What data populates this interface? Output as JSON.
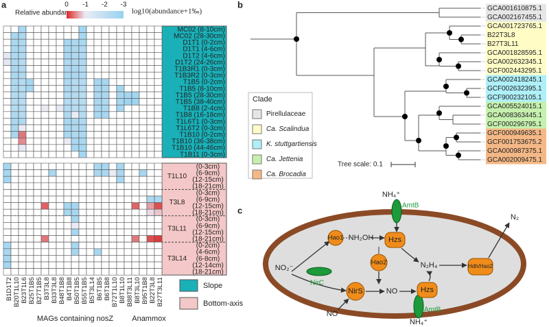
{
  "panel_labels": [
    "a",
    "b",
    "c"
  ],
  "heatmap": {
    "legend_title": "Relative abundance",
    "scale_ticks": [
      0,
      -1,
      -2,
      -3
    ],
    "scale_label": "log10(abundance+1‰)",
    "groups": [
      {
        "label": "MAGs containing nosZ",
        "color": "#1a1ad8",
        "columns": [
          "B1D1T2",
          "B20T1L10",
          "B23T1L6",
          "B25T1B5",
          "B27T1B5",
          "B3T3L8",
          "B33T3L8",
          "B48T1B8",
          "B4T1B8",
          "B50T1B5",
          "B55T1B5",
          "B5T3L14",
          "B6T1B5",
          "B6T1B8",
          "B72T1L10",
          "B8T1L10",
          "B88T3L11",
          "B8T3L10",
          "B95T1B8"
        ]
      },
      {
        "label": "Anammox",
        "color": "#e8201e",
        "columns": [
          "B22T3L8",
          "B27T3L11"
        ]
      }
    ],
    "top": {
      "label": "Slope",
      "color": "#1ab0b8",
      "rows": [
        "MC02 (8-10cm)",
        "MC02 (28-30cm)",
        "D1T1 (0-2cm)",
        "D1T1 (4-6cm)",
        "D1T2 (4-6cm)",
        "D1T2 (24-26cm)",
        "T1B3R1 (0-3cm)",
        "T1B3R2 (0-3cm)",
        "T1B5 (0-2cm)",
        "T1B5 (8-10cm)",
        "T1B5 (28-30cm)",
        "T1B5 (38-40cm)",
        "T1B8 (2-4cm)",
        "T1B8 (16-18cm)",
        "T1L6T1 (0-3cm)",
        "T1L6T2 (0-3cm)",
        "T1B10 (0-2cm)",
        "T1B10 (36-38cm)",
        "T1B10 (44-46cm)",
        "T1B11 (0-3cm)"
      ],
      "values": [
        [
          null,
          null,
          -2.6,
          null,
          null,
          null,
          null,
          null,
          null,
          null,
          -2.7,
          null,
          null,
          null,
          null,
          null,
          null,
          null,
          null,
          null,
          null
        ],
        [
          null,
          -2.6,
          -2.5,
          null,
          null,
          null,
          null,
          null,
          null,
          null,
          -2.6,
          null,
          null,
          null,
          null,
          null,
          null,
          null,
          null,
          null,
          null
        ],
        [
          null,
          -2.5,
          -2.4,
          null,
          null,
          null,
          null,
          null,
          -2.6,
          -2.5,
          -2.5,
          null,
          null,
          null,
          null,
          null,
          null,
          null,
          null,
          null,
          null
        ],
        [
          null,
          -2.5,
          -2.4,
          null,
          null,
          null,
          null,
          null,
          -2.5,
          -2.5,
          -2.4,
          null,
          null,
          null,
          null,
          null,
          null,
          null,
          null,
          null,
          null
        ],
        [
          -1.2,
          -2.4,
          -2.4,
          null,
          null,
          null,
          null,
          null,
          -2.5,
          -2.4,
          -2.4,
          null,
          null,
          null,
          null,
          null,
          null,
          null,
          null,
          null,
          null
        ],
        [
          -1.2,
          -2.4,
          -2.3,
          null,
          null,
          null,
          null,
          null,
          -2.4,
          -2.4,
          -2.4,
          null,
          null,
          null,
          null,
          null,
          null,
          null,
          null,
          null,
          null
        ],
        [
          null,
          -2.5,
          -2.4,
          null,
          null,
          null,
          null,
          null,
          -2.4,
          -2.5,
          -2.3,
          null,
          null,
          null,
          null,
          null,
          null,
          null,
          null,
          null,
          null
        ],
        [
          null,
          -2.5,
          -2.4,
          null,
          null,
          null,
          null,
          null,
          -2.5,
          -2.5,
          -2.4,
          null,
          null,
          null,
          null,
          null,
          null,
          null,
          null,
          null,
          null
        ],
        [
          null,
          -2.4,
          -2.3,
          -2.6,
          null,
          null,
          null,
          null,
          -2.4,
          -2.3,
          -2.3,
          null,
          -2.6,
          -2.6,
          null,
          null,
          null,
          null,
          null,
          null,
          null
        ],
        [
          null,
          -2.4,
          -2.3,
          -2.6,
          null,
          null,
          null,
          null,
          -2.4,
          -2.3,
          -2.3,
          null,
          -2.5,
          -2.5,
          null,
          -2.7,
          null,
          null,
          null,
          null,
          null
        ],
        [
          null,
          -2.3,
          -2.3,
          null,
          null,
          null,
          null,
          null,
          -2.3,
          -2.3,
          -2.2,
          null,
          -2.5,
          -2.5,
          null,
          -2.6,
          -2.7,
          -2.7,
          null,
          null,
          null
        ],
        [
          null,
          -2.3,
          -2.2,
          null,
          null,
          null,
          null,
          null,
          -2.3,
          -2.2,
          -2.2,
          null,
          -2.5,
          -2.4,
          null,
          -2.6,
          -2.8,
          -2.8,
          null,
          null,
          null
        ],
        [
          null,
          -2.3,
          -2.2,
          null,
          null,
          -1.0,
          null,
          -1.1,
          -2.3,
          -2.2,
          -2.2,
          null,
          -2.5,
          -2.5,
          null,
          -2.6,
          null,
          null,
          null,
          null,
          null
        ],
        [
          null,
          -2.4,
          -2.3,
          null,
          null,
          null,
          null,
          null,
          -2.4,
          -1.0,
          -2.3,
          null,
          -2.6,
          -2.6,
          null,
          null,
          null,
          null,
          null,
          null,
          null
        ],
        [
          null,
          -2.5,
          -2.4,
          null,
          null,
          null,
          null,
          null,
          -2.5,
          -2.5,
          -2.4,
          null,
          null,
          null,
          null,
          null,
          null,
          null,
          null,
          null,
          null
        ],
        [
          null,
          -2.5,
          -1.0,
          null,
          null,
          null,
          null,
          null,
          -2.5,
          -2.4,
          -2.4,
          null,
          null,
          null,
          null,
          null,
          null,
          null,
          null,
          null,
          null
        ],
        [
          null,
          -2.6,
          -0.4,
          null,
          null,
          null,
          null,
          null,
          -2.5,
          -2.4,
          -2.5,
          null,
          null,
          null,
          null,
          null,
          null,
          null,
          null,
          null,
          null
        ],
        [
          null,
          null,
          -0.5,
          null,
          null,
          null,
          null,
          null,
          -1.0,
          -2.5,
          -2.5,
          null,
          null,
          null,
          null,
          null,
          null,
          null,
          null,
          null,
          null
        ],
        [
          null,
          null,
          -1.1,
          null,
          null,
          null,
          null,
          null,
          null,
          -2.6,
          -2.6,
          null,
          null,
          null,
          null,
          null,
          null,
          null,
          null,
          null,
          null
        ],
        [
          null,
          null,
          null,
          null,
          null,
          null,
          null,
          null,
          null,
          null,
          -2.7,
          null,
          null,
          null,
          null,
          null,
          null,
          null,
          null,
          null,
          null
        ]
      ]
    },
    "bottom": {
      "label": "Bottom-axis",
      "color": "#f4c8c8",
      "sites": [
        {
          "name": "T1L10",
          "depths": [
            "(0-3cm)",
            "(6-9cm)",
            "(12-15cm)",
            "(18-21cm)"
          ],
          "values": [
            [
              -2.6,
              null,
              null,
              null,
              null,
              null,
              null,
              null,
              null,
              null,
              null,
              null,
              -2.5,
              -2.6,
              null,
              -2.6,
              null,
              null,
              null,
              null,
              null
            ],
            [
              -2.6,
              null,
              null,
              null,
              null,
              null,
              -2.6,
              null,
              null,
              null,
              null,
              null,
              -2.5,
              -2.5,
              -1.0,
              -2.5,
              null,
              null,
              -2.6,
              null,
              null
            ],
            [
              -2.7,
              null,
              null,
              null,
              null,
              null,
              null,
              null,
              null,
              null,
              null,
              null,
              null,
              null,
              null,
              -2.6,
              null,
              null,
              null,
              null,
              null
            ],
            [
              null,
              null,
              null,
              null,
              null,
              null,
              null,
              null,
              null,
              null,
              null,
              null,
              null,
              null,
              null,
              null,
              null,
              null,
              null,
              null,
              null
            ]
          ]
        },
        {
          "name": "T3L8",
          "depths": [
            "(0-3cm)",
            "(6-9cm)",
            "(12-15cm)",
            "(18-21cm)"
          ],
          "values": [
            [
              null,
              null,
              null,
              null,
              null,
              null,
              null,
              null,
              null,
              null,
              null,
              null,
              null,
              null,
              null,
              null,
              null,
              null,
              null,
              null,
              null
            ],
            [
              null,
              null,
              null,
              null,
              null,
              null,
              null,
              null,
              null,
              null,
              null,
              null,
              null,
              null,
              null,
              null,
              null,
              null,
              null,
              -2.5,
              -2.5
            ],
            [
              null,
              null,
              null,
              null,
              null,
              -0.3,
              null,
              null,
              -2.6,
              -2.6,
              null,
              null,
              null,
              null,
              null,
              null,
              null,
              -0.3,
              null,
              -0.6,
              -0.2
            ],
            [
              null,
              null,
              null,
              null,
              null,
              null,
              null,
              null,
              -2.6,
              -2.6,
              null,
              null,
              null,
              null,
              null,
              null,
              null,
              null,
              null,
              -0.9,
              -0.8
            ]
          ]
        },
        {
          "name": "T3L11",
          "depths": [
            "(0-3cm)",
            "(6-9cm)",
            "(12-15cm)",
            "(18-21cm)"
          ],
          "values": [
            [
              null,
              null,
              null,
              null,
              null,
              null,
              null,
              null,
              null,
              -2.6,
              null,
              null,
              null,
              null,
              null,
              null,
              null,
              null,
              null,
              null,
              null
            ],
            [
              null,
              null,
              null,
              null,
              null,
              null,
              null,
              null,
              null,
              -1.0,
              null,
              null,
              null,
              null,
              null,
              null,
              null,
              null,
              null,
              null,
              null
            ],
            [
              null,
              null,
              null,
              null,
              null,
              null,
              null,
              null,
              null,
              -2.6,
              null,
              null,
              null,
              null,
              null,
              null,
              null,
              null,
              null,
              null,
              null
            ],
            [
              null,
              null,
              null,
              null,
              null,
              -0.4,
              null,
              null,
              null,
              null,
              null,
              null,
              null,
              null,
              null,
              null,
              null,
              -0.4,
              null,
              -0.2,
              -0.1
            ]
          ]
        },
        {
          "name": "T3L14",
          "depths": [
            "(0-2cm)",
            "(4-6cm)",
            "(6-8cm)",
            "(12-14cm)",
            "(18-21cm)"
          ],
          "values": [
            [
              -2.6,
              null,
              null,
              null,
              null,
              null,
              null,
              null,
              null,
              -2.6,
              null,
              null,
              null,
              null,
              null,
              null,
              null,
              null,
              null,
              null,
              null
            ],
            [
              -2.6,
              null,
              null,
              null,
              null,
              null,
              null,
              null,
              null,
              -2.6,
              null,
              null,
              -2.6,
              null,
              null,
              null,
              null,
              null,
              null,
              null,
              null
            ],
            [
              -2.6,
              null,
              null,
              null,
              null,
              null,
              null,
              null,
              null,
              null,
              null,
              null,
              null,
              null,
              null,
              null,
              null,
              null,
              null,
              null,
              null
            ],
            [
              -2.7,
              null,
              null,
              null,
              null,
              null,
              null,
              null,
              null,
              null,
              null,
              null,
              null,
              null,
              null,
              null,
              null,
              null,
              null,
              null,
              null
            ],
            [
              null,
              null,
              null,
              null,
              null,
              null,
              null,
              null,
              null,
              null,
              null,
              null,
              null,
              null,
              null,
              null,
              null,
              null,
              null,
              null,
              null
            ]
          ]
        }
      ]
    }
  },
  "tree": {
    "leaves": [
      {
        "label": "GCA001610875.1",
        "color": "#e6e6e6"
      },
      {
        "label": "GCA002167455.1",
        "color": "#e6e6e6"
      },
      {
        "label": "GCA001723765.1",
        "color": "#fffcc6"
      },
      {
        "label": "B22T3L8",
        "color": "#fffcc6",
        "text_color": "#e8201e"
      },
      {
        "label": "B27T3L11",
        "color": "#fffcc6",
        "text_color": "#e8201e"
      },
      {
        "label": "GCA001828595.1",
        "color": "#fffcc6"
      },
      {
        "label": "GCA002632345.1",
        "color": "#fffcc6"
      },
      {
        "label": "GCF002443295.1",
        "color": "#fffcc6"
      },
      {
        "label": "GCA002418245.1",
        "color": "#aeeff8"
      },
      {
        "label": "GCF002632395.1",
        "color": "#aeeff8"
      },
      {
        "label": "GCF900232105.1",
        "color": "#aeeff8"
      },
      {
        "label": "GCA005524015.1",
        "color": "#c6f0ae"
      },
      {
        "label": "GCA008363445.1",
        "color": "#c6f0ae"
      },
      {
        "label": "GCF000296795.1",
        "color": "#c6f0ae"
      },
      {
        "label": "GCF000949635.1",
        "color": "#f4b886"
      },
      {
        "label": "GCF001753675.2",
        "color": "#f4b886"
      },
      {
        "label": "GCA000987375.1",
        "color": "#f4b886"
      },
      {
        "label": "GCA002009475.1",
        "color": "#f4b886"
      }
    ],
    "legend_title": "Clade",
    "clades": [
      {
        "name": "Pirellulaceae",
        "color": "#e6e6e6"
      },
      {
        "name": "Ca. Scalindua",
        "color": "#fffcc6"
      },
      {
        "name": "K. stuttgartiensis",
        "color": "#aeeff8"
      },
      {
        "name": "Ca. Jettenia",
        "color": "#c6f0ae"
      },
      {
        "name": "Ca. Brocadia",
        "color": "#f4b886"
      }
    ],
    "scale_label": "Tree scale: 0.1"
  },
  "diagram": {
    "nh4_top": "NH₄⁺",
    "amtb_top": "AmtB",
    "n2": "N₂",
    "hao1": "Hao1",
    "nh2oh": "NH₂OH",
    "hzs_top": "Hzs",
    "hao2": "Hao2",
    "n2h4": "N₂H₄",
    "hdh": "Hdh/Hao2",
    "no2": "NO₂⁻",
    "nirc": "NirC",
    "nirs": "NirS",
    "no_in": "NO",
    "hzs_bottom": "Hzs",
    "no_out": "NO",
    "amtb_bottom": "AmtB",
    "nh4_bottom": "NH₄⁺"
  }
}
